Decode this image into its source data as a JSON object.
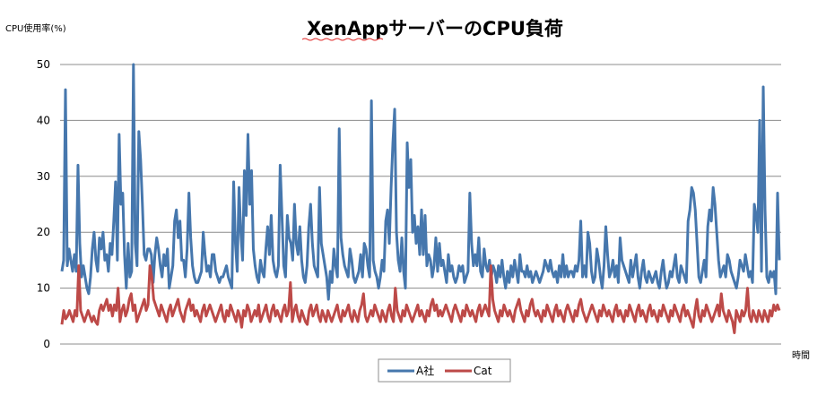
{
  "chart_data": {
    "type": "line",
    "title": "XenAppサーバーのCPU負荷",
    "ylabel": "CPU使用率(%)",
    "xlabel": "時間",
    "ylim": [
      0,
      50
    ],
    "yticks": [
      "0",
      "10",
      "20",
      "30",
      "40",
      "50"
    ],
    "grid": true,
    "legend": "bottom",
    "series": [
      {
        "name": "A社",
        "color": "#4677ad",
        "values": [
          13,
          15,
          45.5,
          14,
          17,
          15,
          13,
          16,
          13,
          32,
          18,
          12,
          14,
          12,
          10,
          9,
          12,
          17,
          20,
          15,
          13,
          19,
          17,
          20,
          15,
          16,
          13,
          18,
          16,
          22,
          29,
          15,
          37.5,
          25,
          27,
          16,
          10,
          18,
          12,
          13,
          50,
          18,
          14,
          38,
          33,
          25,
          16,
          15,
          17,
          17,
          16,
          11,
          16,
          19,
          17,
          14,
          12,
          16,
          14,
          17,
          10,
          12,
          14,
          22,
          24,
          19,
          22,
          15,
          15,
          12,
          17,
          27,
          19,
          14,
          12,
          11,
          11,
          12,
          13,
          20,
          16,
          13,
          14,
          12,
          16,
          16,
          13,
          12,
          11,
          12,
          12,
          13,
          14,
          12,
          11,
          10,
          29,
          18,
          13,
          28,
          20,
          15,
          31,
          23,
          37.5,
          25,
          31,
          17,
          14,
          12,
          11,
          15,
          13,
          12,
          17,
          21,
          16,
          23,
          15,
          13,
          12,
          14,
          32,
          23,
          14,
          12,
          23,
          19,
          18,
          15,
          25,
          18,
          16,
          21,
          15,
          12,
          11,
          14,
          21,
          25,
          18,
          14,
          13,
          12,
          28,
          18,
          16,
          14,
          12,
          8,
          13,
          11,
          17,
          14,
          12,
          38.5,
          19,
          16,
          14,
          13,
          12,
          17,
          15,
          12,
          11,
          12,
          13,
          16,
          12,
          18,
          17,
          14,
          12,
          43.5,
          15,
          13,
          12,
          10,
          12,
          15,
          13,
          22,
          24,
          18,
          28,
          36,
          42,
          20,
          15,
          13,
          19,
          13,
          10,
          36,
          28,
          33,
          20,
          23,
          18,
          21,
          16,
          24,
          16,
          23,
          14,
          16,
          15,
          12,
          14,
          19,
          13,
          18,
          14,
          15,
          13,
          11,
          16,
          13,
          14,
          12,
          11,
          12,
          14,
          13,
          14,
          11,
          12,
          13,
          27,
          18,
          14,
          16,
          14,
          19,
          13,
          12,
          17,
          14,
          13,
          15,
          12,
          14,
          13,
          11,
          14,
          12,
          15,
          12,
          10,
          13,
          11,
          14,
          12,
          15,
          13,
          11,
          16,
          13,
          13,
          12,
          14,
          12,
          13,
          11,
          12,
          13,
          12,
          11,
          12,
          13,
          15,
          14,
          13,
          15,
          13,
          12,
          13,
          11,
          14,
          12,
          16,
          12,
          14,
          12,
          13,
          13,
          12,
          14,
          13,
          15,
          22,
          12,
          14,
          12,
          20,
          18,
          13,
          11,
          12,
          17,
          15,
          12,
          10,
          14,
          21,
          16,
          12,
          13,
          15,
          12,
          14,
          11,
          19,
          15,
          14,
          13,
          12,
          11,
          15,
          12,
          14,
          16,
          12,
          10,
          13,
          15,
          12,
          11,
          13,
          12,
          11,
          12,
          13,
          11,
          10,
          13,
          15,
          12,
          10,
          11,
          13,
          12,
          14,
          16,
          12,
          11,
          14,
          13,
          12,
          11,
          22,
          24,
          28,
          27,
          24,
          18,
          12,
          11,
          13,
          15,
          12,
          21,
          24,
          22,
          28,
          25,
          20,
          15,
          12,
          13,
          14,
          12,
          16,
          15,
          13,
          12,
          11,
          10,
          12,
          15,
          14,
          13,
          16,
          14,
          12,
          13,
          11,
          25,
          23,
          20,
          40,
          13,
          46,
          24,
          12,
          11,
          13,
          12,
          13,
          9,
          27,
          15
        ]
      },
      {
        "name": "Cat",
        "color": "#bd4a48",
        "values": [
          3.5,
          6,
          4.5,
          5,
          6,
          5,
          4,
          6,
          5,
          14,
          6,
          5,
          4,
          5,
          6,
          5,
          4,
          5,
          4,
          3.5,
          6,
          7,
          6,
          7,
          8,
          6,
          7,
          5,
          7,
          6,
          10,
          4,
          6,
          7,
          5,
          6,
          8,
          9,
          6,
          7,
          4,
          5,
          6,
          7,
          8,
          6,
          7,
          14,
          12,
          8,
          7,
          6,
          5,
          7,
          6,
          5,
          4,
          6,
          7,
          5,
          6,
          7,
          8,
          6,
          5,
          4,
          6,
          7,
          8,
          6,
          7,
          5,
          6,
          5,
          4,
          6,
          7,
          5,
          6,
          7,
          6,
          5,
          4,
          5,
          6,
          7,
          5,
          4,
          6,
          5,
          7,
          6,
          5,
          4,
          6,
          5,
          3,
          6,
          5,
          7,
          6,
          4,
          5,
          6,
          5,
          7,
          4,
          5,
          6,
          7,
          5,
          4,
          6,
          7,
          5,
          6,
          5,
          4,
          6,
          7,
          5,
          6,
          11,
          4,
          6,
          7,
          5,
          4,
          6,
          5,
          4,
          3.5,
          6,
          7,
          5,
          6,
          7,
          5,
          4,
          6,
          5,
          4,
          6,
          5,
          4,
          5,
          6,
          7,
          5,
          4,
          6,
          5,
          6,
          7,
          5,
          4,
          6,
          5,
          4,
          6,
          7,
          9,
          5,
          4,
          5,
          6,
          5,
          7,
          6,
          5,
          4,
          6,
          5,
          4,
          6,
          7,
          5,
          4,
          10,
          6,
          5,
          4,
          6,
          5,
          7,
          6,
          5,
          4,
          5,
          6,
          7,
          5,
          6,
          5,
          4,
          6,
          5,
          7,
          8,
          6,
          7,
          5,
          6,
          5,
          6,
          7,
          6,
          5,
          4,
          6,
          7,
          6,
          5,
          4,
          6,
          5,
          7,
          6,
          5,
          6,
          5,
          4,
          6,
          7,
          5,
          6,
          7,
          6,
          5,
          14,
          8,
          6,
          5,
          4,
          6,
          5,
          7,
          6,
          5,
          6,
          5,
          4,
          6,
          7,
          8,
          6,
          5,
          4,
          6,
          5,
          7,
          8,
          6,
          5,
          6,
          5,
          4,
          6,
          5,
          7,
          6,
          5,
          4,
          6,
          7,
          5,
          6,
          5,
          4,
          6,
          7,
          6,
          5,
          4,
          6,
          5,
          7,
          8,
          6,
          5,
          4,
          5,
          6,
          7,
          6,
          5,
          4,
          6,
          5,
          7,
          6,
          5,
          6,
          5,
          4,
          6,
          7,
          5,
          6,
          5,
          4,
          6,
          5,
          7,
          6,
          5,
          4,
          6,
          7,
          5,
          6,
          5,
          4,
          6,
          7,
          5,
          6,
          5,
          4,
          6,
          5,
          7,
          6,
          5,
          4,
          6,
          5,
          7,
          6,
          5,
          4,
          6,
          7,
          5,
          6,
          5,
          4,
          3,
          6,
          8,
          5,
          4,
          6,
          5,
          7,
          6,
          5,
          4,
          5,
          6,
          7,
          5,
          9,
          6,
          5,
          4,
          6,
          5,
          4,
          2,
          6,
          5,
          4,
          6,
          5,
          6,
          10,
          5,
          4,
          6,
          5,
          4,
          6,
          5,
          4,
          6,
          5,
          4,
          6,
          5,
          7,
          6,
          7,
          6
        ]
      }
    ]
  }
}
